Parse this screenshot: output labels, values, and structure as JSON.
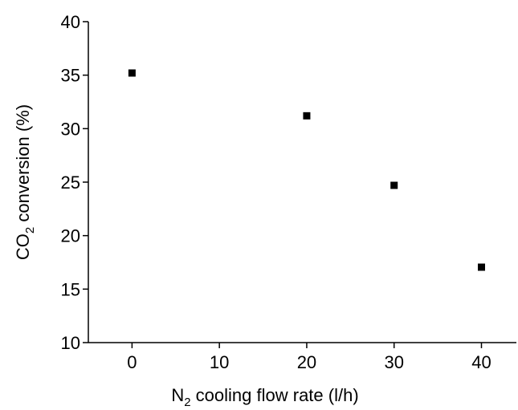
{
  "chart_data": {
    "type": "scatter",
    "x_label": [
      "N",
      "2",
      " cooling flow rate (l/h)"
    ],
    "y_label": [
      "CO",
      "2",
      " conversion (%)"
    ],
    "x": [
      0,
      20,
      30,
      40
    ],
    "series": [
      {
        "color": "#000000",
        "values": [
          35.2,
          31.2,
          24.7,
          17.05
        ]
      }
    ],
    "xlim": [
      -5,
      44
    ],
    "xticks": [
      0,
      10,
      20,
      30,
      40
    ],
    "ylim": [
      10,
      40
    ],
    "yticks": [
      10,
      15,
      20,
      25,
      30,
      35,
      40
    ]
  }
}
